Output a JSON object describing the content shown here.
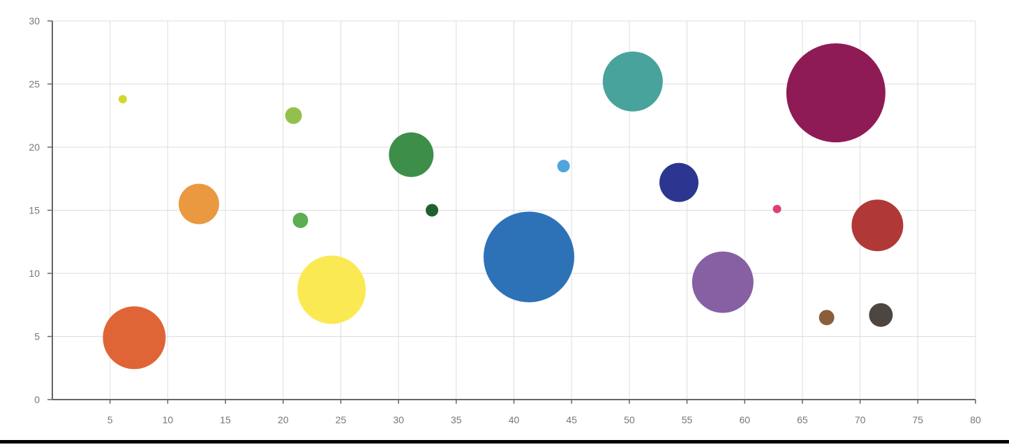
{
  "chart_data": {
    "type": "scatter",
    "title": "",
    "xlabel": "",
    "ylabel": "",
    "xlim": [
      0,
      80
    ],
    "ylim": [
      0,
      30
    ],
    "grid": true,
    "x_ticks": [
      5,
      10,
      15,
      20,
      25,
      30,
      35,
      40,
      45,
      50,
      55,
      60,
      65,
      70,
      75,
      80
    ],
    "y_ticks": [
      0,
      5,
      10,
      15,
      20,
      25,
      30
    ],
    "size_unit": "relative bubble radius",
    "points": [
      {
        "x": 6.1,
        "y": 23.8,
        "size": 6,
        "color": "#d4d62c"
      },
      {
        "x": 7.1,
        "y": 4.9,
        "size": 45,
        "color": "#e06536"
      },
      {
        "x": 12.7,
        "y": 15.5,
        "size": 29,
        "color": "#ea9940"
      },
      {
        "x": 20.9,
        "y": 22.5,
        "size": 12,
        "color": "#93c04c"
      },
      {
        "x": 21.5,
        "y": 14.2,
        "size": 11,
        "color": "#5cad54"
      },
      {
        "x": 24.2,
        "y": 8.7,
        "size": 49,
        "color": "#fbe953"
      },
      {
        "x": 31.1,
        "y": 19.4,
        "size": 32,
        "color": "#3d8e49"
      },
      {
        "x": 32.9,
        "y": 15.0,
        "size": 9,
        "color": "#1f5f31"
      },
      {
        "x": 41.3,
        "y": 11.3,
        "size": 65,
        "color": "#2d72b7"
      },
      {
        "x": 44.3,
        "y": 18.5,
        "size": 9,
        "color": "#4fa6dc"
      },
      {
        "x": 50.3,
        "y": 25.2,
        "size": 43,
        "color": "#48a39c"
      },
      {
        "x": 54.3,
        "y": 17.2,
        "size": 28,
        "color": "#2c3690"
      },
      {
        "x": 58.1,
        "y": 9.3,
        "size": 44,
        "color": "#8660a3"
      },
      {
        "x": 62.8,
        "y": 15.1,
        "size": 6,
        "color": "#df3e7a"
      },
      {
        "x": 67.1,
        "y": 6.5,
        "size": 11,
        "color": "#8a5e3a"
      },
      {
        "x": 67.9,
        "y": 24.3,
        "size": 71,
        "color": "#8e1b55"
      },
      {
        "x": 71.5,
        "y": 13.8,
        "size": 37,
        "color": "#b03836"
      },
      {
        "x": 71.8,
        "y": 6.7,
        "size": 17,
        "color": "#4d4540"
      }
    ]
  }
}
